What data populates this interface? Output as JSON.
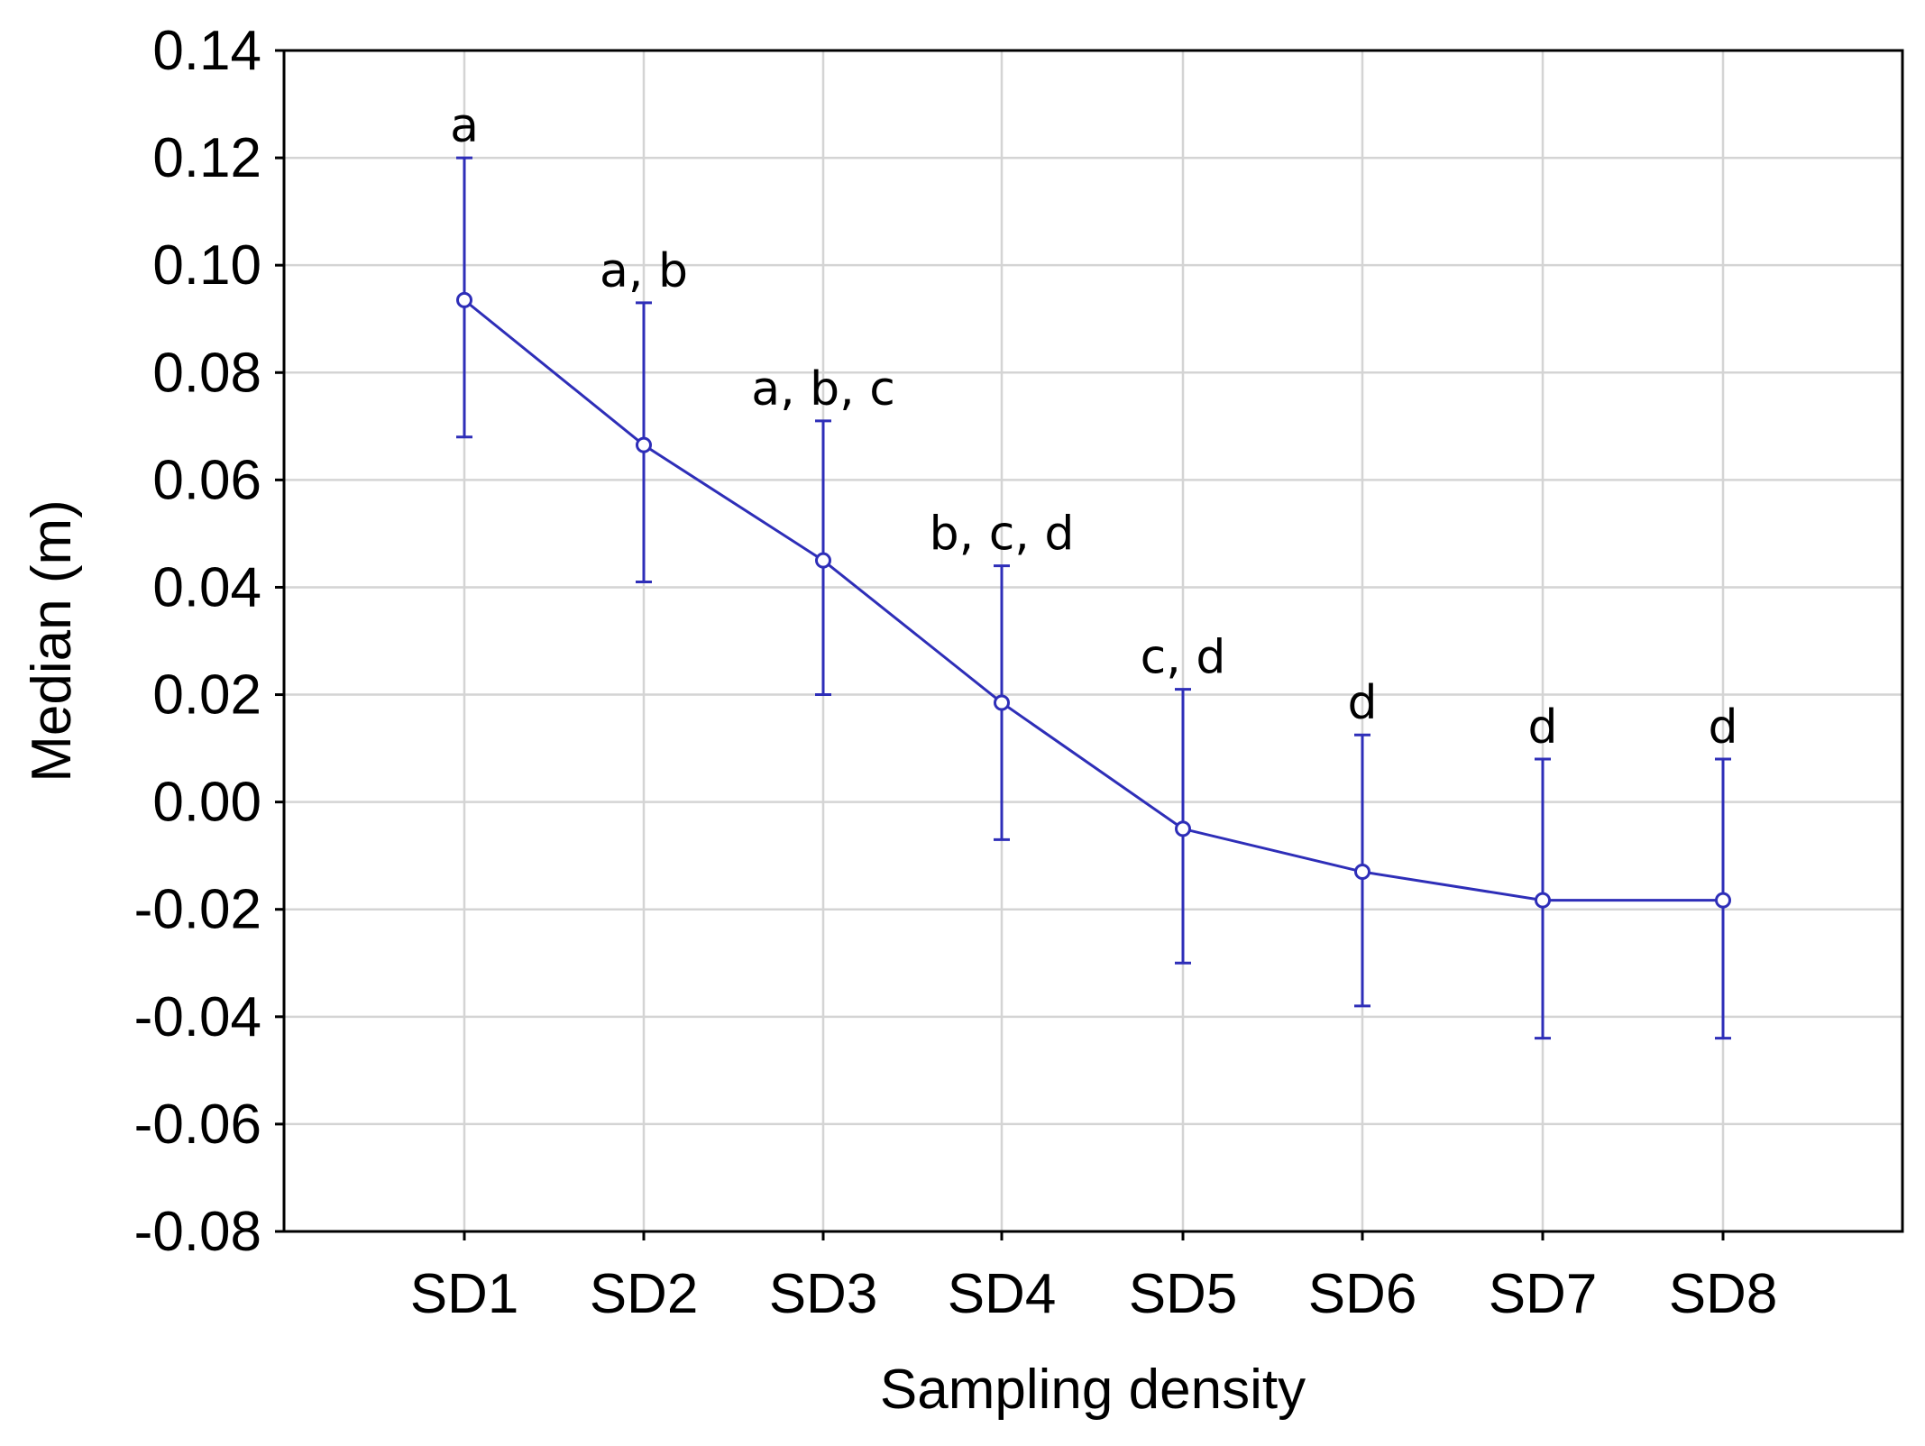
{
  "chart_data": {
    "type": "line",
    "title": "",
    "xlabel": "Sampling density",
    "ylabel": "Median (m)",
    "categories": [
      "SD1",
      "SD2",
      "SD3",
      "SD4",
      "SD5",
      "SD6",
      "SD7",
      "SD8"
    ],
    "series": [
      {
        "name": "Median",
        "values": [
          0.0935,
          0.0665,
          0.045,
          0.0185,
          -0.005,
          -0.013,
          -0.0183,
          -0.0183
        ],
        "error_low": [
          0.068,
          0.041,
          0.02,
          -0.007,
          -0.03,
          -0.038,
          -0.044,
          -0.044
        ],
        "error_high": [
          0.12,
          0.093,
          0.071,
          0.044,
          0.021,
          0.0125,
          0.008,
          0.008
        ],
        "labels": [
          "a",
          "a, b",
          "a, b, c",
          "b, c, d",
          "c, d",
          "d",
          "d",
          "d"
        ]
      }
    ],
    "ylim": [
      -0.08,
      0.14
    ],
    "yticks": [
      0.14,
      0.12,
      0.1,
      0.08,
      0.06,
      0.04,
      0.02,
      0.0,
      -0.02,
      -0.04,
      -0.06,
      -0.08
    ],
    "ytick_labels": [
      "0.14",
      "0.12",
      "0.10",
      "0.08",
      "0.06",
      "0.04",
      "0.02",
      "0.00",
      "-0.02",
      "-0.04",
      "-0.06",
      "-0.08"
    ],
    "grid": true,
    "line_color": "#2e2eb8"
  }
}
